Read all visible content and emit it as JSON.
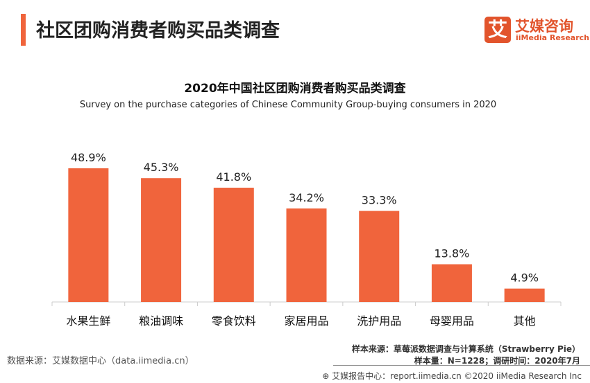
{
  "header": {
    "title": "社区团购消费者购买品类调查"
  },
  "logo": {
    "mark": "艾",
    "name_cn": "艾媒咨询",
    "name_en": "iiMedia Research"
  },
  "colors": {
    "accent": "#f0643c",
    "bar": "#f0643c",
    "axis": "#cccccc"
  },
  "chart_data": {
    "type": "bar",
    "title": "2020年中国社区团购消费者购买品类调查",
    "subtitle": "Survey on the purchase categories of Chinese Community Group-buying consumers in 2020",
    "categories": [
      "水果生鲜",
      "粮油调味",
      "零食饮料",
      "家居用品",
      "洗护用品",
      "母婴用品",
      "其他"
    ],
    "values": [
      48.9,
      45.3,
      41.8,
      34.2,
      33.3,
      13.8,
      4.9
    ],
    "data_labels": [
      "48.9%",
      "45.3%",
      "41.8%",
      "34.2%",
      "33.3%",
      "13.8%",
      "4.9%"
    ],
    "xlabel": "",
    "ylabel": "",
    "ylim": [
      0,
      55
    ],
    "grid": false,
    "legend": "none"
  },
  "sources": {
    "left": "数据来源：艾媒数据中心（data.iimedia.cn）",
    "sample_source": "样本来源：草莓派数据调查与计算系统（Strawberry Pie）",
    "sample_size": "样本量：N=1228；调研时间：2020年7月"
  },
  "footer": {
    "text": "艾媒报告中心：report.iimedia.cn   ©2020  iiMedia Research  Inc"
  }
}
